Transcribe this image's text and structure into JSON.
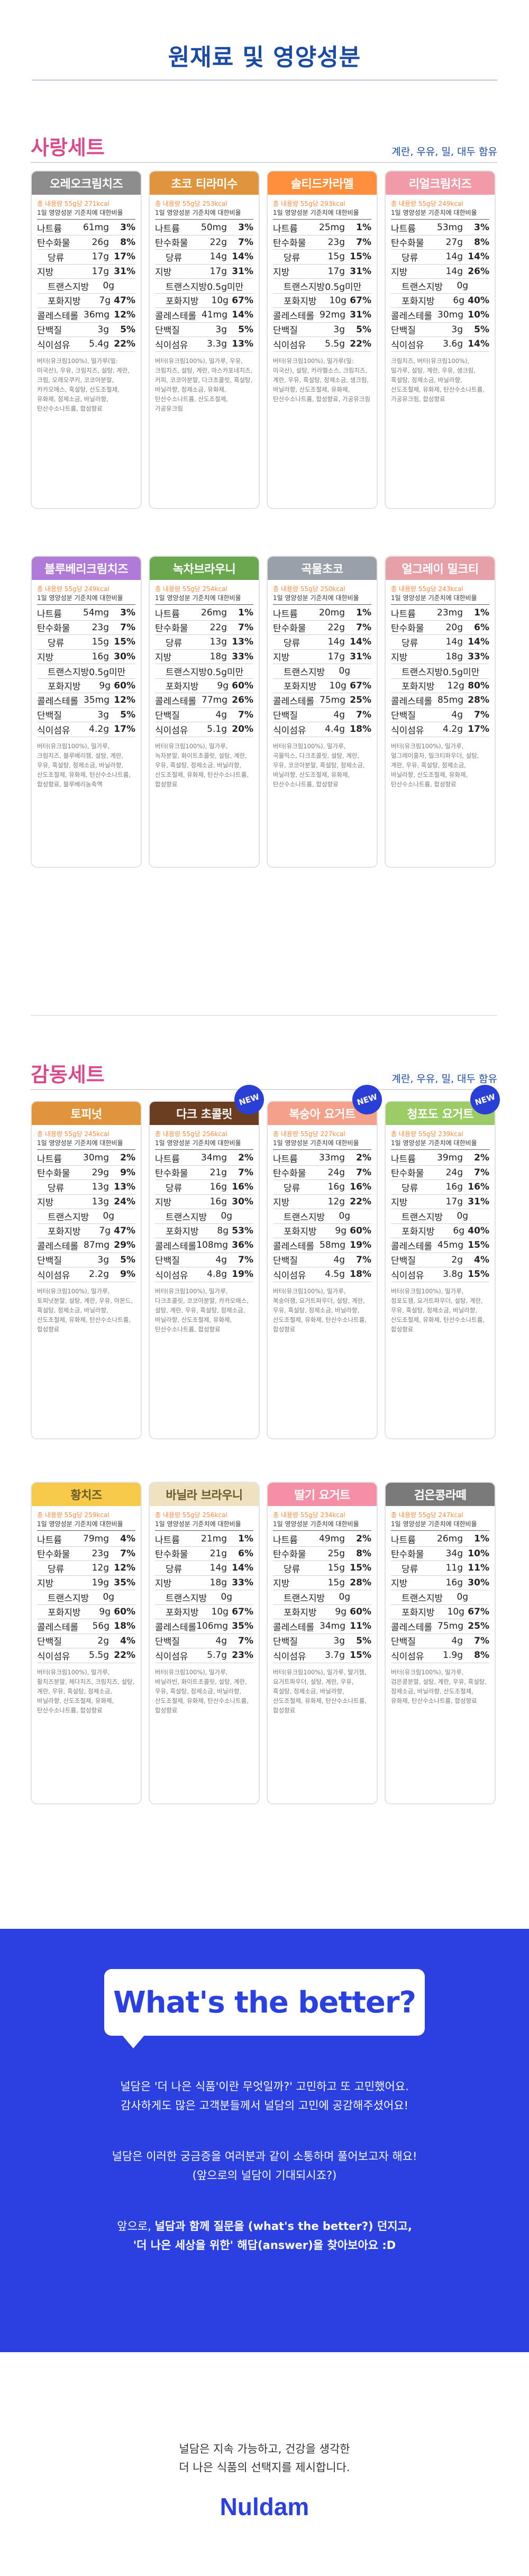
{
  "page_title": "원재료 및 영양성분",
  "sets": [
    {
      "title": "사랑세트",
      "note": "계란, 우유, 밀, 대두 함유",
      "cards": [
        {
          "name": "오레오크림치즈",
          "color": "#8c8c8c",
          "new": false,
          "cal": "총 내용량 55g당 271kcal",
          "basis": "1일 영양성분 기준치에 대한비율",
          "rows": [
            [
              "나트륨",
              "61mg",
              "3%"
            ],
            [
              "탄수화물",
              "26g",
              "8%"
            ],
            [
              "당류",
              "17g",
              "17%"
            ],
            [
              "지방",
              "17g",
              "31%"
            ],
            [
              "트랜스지방",
              "0g",
              ""
            ],
            [
              "포화지방",
              "7g",
              "47%"
            ],
            [
              "콜레스테롤",
              "36mg",
              "12%"
            ],
            [
              "단백질",
              "3g",
              "5%"
            ],
            [
              "식이섬유",
              "5.4g",
              "22%"
            ]
          ],
          "ingr": "버터(유크림100%), 밀가루(밀: 미국산), 우유, 크림치즈, 설탕, 계란, 크림, 오레오쿠키, 코코아분말, 카카오매스, 흑설탕, 산도조절제, 유화제, 정제소금, 바닐라향, 탄산수소나트륨, 합성향료"
        },
        {
          "name": "초코 티라미수",
          "color": "#e0943c",
          "new": false,
          "cal": "총 내용량 55g당 253kcal",
          "basis": "1일 영양성분 기준치에 대한비율",
          "rows": [
            [
              "나트륨",
              "50mg",
              "3%"
            ],
            [
              "탄수화물",
              "22g",
              "7%"
            ],
            [
              "당류",
              "14g",
              "14%"
            ],
            [
              "지방",
              "17g",
              "31%"
            ],
            [
              "트랜스지방",
              "0.5g미만",
              ""
            ],
            [
              "포화지방",
              "10g",
              "67%"
            ],
            [
              "콜레스테롤",
              "41mg",
              "14%"
            ],
            [
              "단백질",
              "3g",
              "5%"
            ],
            [
              "식이섬유",
              "3.3g",
              "13%"
            ]
          ],
          "ingr": "버터(유크림100%), 밀가루, 우유, 크림치즈, 설탕, 계란, 마스카포네치즈, 커피, 코코아분말, 다크초콜릿, 흑설탕, 바닐라향, 정제소금, 유화제, 탄산수소나트륨, 산도조절제, 가공유크림"
        },
        {
          "name": "솔티드카라멜",
          "color": "#ff8f3a",
          "new": false,
          "cal": "총 내용량 55g당 293kcal",
          "basis": "1일 영양성분 기준치에 대한비율",
          "rows": [
            [
              "나트륨",
              "25mg",
              "1%"
            ],
            [
              "탄수화물",
              "23g",
              "7%"
            ],
            [
              "당류",
              "15g",
              "15%"
            ],
            [
              "지방",
              "17g",
              "31%"
            ],
            [
              "트랜스지방",
              "0.5g미만",
              ""
            ],
            [
              "포화지방",
              "10g",
              "67%"
            ],
            [
              "콜레스테롤",
              "92mg",
              "31%"
            ],
            [
              "단백질",
              "3g",
              "5%"
            ],
            [
              "식이섬유",
              "5.5g",
              "22%"
            ]
          ],
          "ingr": "버터(유크림100%), 밀가루(밀: 미국산), 설탕, 카라멜소스, 크림치즈, 계란, 우유, 흑설탕, 정제소금, 생크림, 바닐라향, 산도조절제, 유화제, 탄산수소나트륨, 합성향료, 가공유크림"
        },
        {
          "name": "리얼크림치즈",
          "color": "#f19aa8",
          "new": false,
          "cal": "총 내용량 55g당 249kcal",
          "basis": "1일 영양성분 기준치에 대한비율",
          "rows": [
            [
              "나트륨",
              "53mg",
              "3%"
            ],
            [
              "탄수화물",
              "27g",
              "8%"
            ],
            [
              "당류",
              "14g",
              "14%"
            ],
            [
              "지방",
              "14g",
              "26%"
            ],
            [
              "트랜스지방",
              "0g",
              ""
            ],
            [
              "포화지방",
              "6g",
              "40%"
            ],
            [
              "콜레스테롤",
              "30mg",
              "10%"
            ],
            [
              "단백질",
              "3g",
              "5%"
            ],
            [
              "식이섬유",
              "3.6g",
              "14%"
            ]
          ],
          "ingr": "크림치즈, 버터(유크림100%), 밀가루, 설탕, 계란, 우유, 생크림, 흑설탕, 정제소금, 바닐라향, 산도조절제, 유화제, 탄산수소나트륨, 가공유크림, 합성향료"
        },
        {
          "name": "블루베리크림치즈",
          "color": "#b07ad8",
          "new": false,
          "cal": "총 내용량 55g당 249kcal",
          "basis": "1일 영양성분 기준치에 대한비율",
          "rows": [
            [
              "나트륨",
              "54mg",
              "3%"
            ],
            [
              "탄수화물",
              "23g",
              "7%"
            ],
            [
              "당류",
              "15g",
              "15%"
            ],
            [
              "지방",
              "16g",
              "30%"
            ],
            [
              "트랜스지방",
              "0.5g미만",
              ""
            ],
            [
              "포화지방",
              "9g",
              "60%"
            ],
            [
              "콜레스테롤",
              "35mg",
              "12%"
            ],
            [
              "단백질",
              "3g",
              "5%"
            ],
            [
              "식이섬유",
              "4.2g",
              "17%"
            ]
          ],
          "ingr": "버터(유크림100%), 밀가루, 크림치즈, 블루베리잼, 설탕, 계란, 우유, 흑설탕, 정제소금, 바닐라향, 산도조절제, 유화제, 탄산수소나트륨, 합성향료, 블루베리농축액"
        },
        {
          "name": "녹차브라우니",
          "color": "#6aa84f",
          "new": false,
          "cal": "총 내용량 55g당 254kcal",
          "basis": "1일 영양성분 기준치에 대한비율",
          "rows": [
            [
              "나트륨",
              "26mg",
              "1%"
            ],
            [
              "탄수화물",
              "22g",
              "7%"
            ],
            [
              "당류",
              "13g",
              "13%"
            ],
            [
              "지방",
              "18g",
              "33%"
            ],
            [
              "트랜스지방",
              "0.5g미만",
              ""
            ],
            [
              "포화지방",
              "9g",
              "60%"
            ],
            [
              "콜레스테롤",
              "77mg",
              "26%"
            ],
            [
              "단백질",
              "4g",
              "7%"
            ],
            [
              "식이섬유",
              "5.1g",
              "20%"
            ]
          ],
          "ingr": "버터(유크림100%), 밀가루, 녹차분말, 화이트초콜릿, 설탕, 계란, 우유, 흑설탕, 정제소금, 바닐라향, 산도조절제, 유화제, 탄산수소나트륨, 합성향료"
        },
        {
          "name": "곡물초코",
          "color": "#9aa0a8",
          "new": false,
          "cal": "총 내용량 55g당 250kcal",
          "basis": "1일 영양성분 기준치에 대한비율",
          "rows": [
            [
              "나트륨",
              "20mg",
              "1%"
            ],
            [
              "탄수화물",
              "22g",
              "7%"
            ],
            [
              "당류",
              "14g",
              "14%"
            ],
            [
              "지방",
              "17g",
              "31%"
            ],
            [
              "트랜스지방",
              "0g",
              ""
            ],
            [
              "포화지방",
              "10g",
              "67%"
            ],
            [
              "콜레스테롤",
              "75mg",
              "25%"
            ],
            [
              "단백질",
              "4g",
              "7%"
            ],
            [
              "식이섬유",
              "4.4g",
              "18%"
            ]
          ],
          "ingr": "버터(유크림100%), 밀가루, 곡물믹스, 다크초콜릿, 설탕, 계란, 우유, 코코아분말, 흑설탕, 정제소금, 바닐라향, 산도조절제, 유화제, 탄산수소나트륨, 합성향료"
        },
        {
          "name": "얼그레이 밀크티",
          "color": "#e8a0a8",
          "new": false,
          "cal": "총 내용량 55g당 243kcal",
          "basis": "1일 영양성분 기준치에 대한비율",
          "rows": [
            [
              "나트륨",
              "23mg",
              "1%"
            ],
            [
              "탄수화물",
              "20g",
              "6%"
            ],
            [
              "당류",
              "14g",
              "14%"
            ],
            [
              "지방",
              "18g",
              "33%"
            ],
            [
              "트랜스지방",
              "0.5g미만",
              ""
            ],
            [
              "포화지방",
              "12g",
              "80%"
            ],
            [
              "콜레스테롤",
              "85mg",
              "28%"
            ],
            [
              "단백질",
              "4g",
              "7%"
            ],
            [
              "식이섬유",
              "4.2g",
              "17%"
            ]
          ],
          "ingr": "버터(유크림100%), 밀가루, 얼그레이홍차, 밀크티파우더, 설탕, 계란, 우유, 흑설탕, 정제소금, 바닐라향, 산도조절제, 유화제, 탄산수소나트륨, 합성향료"
        }
      ]
    },
    {
      "title": "감동세트",
      "note": "계란, 우유, 밀, 대두 함유",
      "cards": [
        {
          "name": "토피넛",
          "color": "#e0943c",
          "new": false,
          "cal": "총 내용량 55g당 245kcal",
          "basis": "1일 영양성분 기준치에 대한비율",
          "rows": [
            [
              "나트륨",
              "30mg",
              "2%"
            ],
            [
              "탄수화물",
              "29g",
              "9%"
            ],
            [
              "당류",
              "13g",
              "13%"
            ],
            [
              "지방",
              "13g",
              "24%"
            ],
            [
              "트랜스지방",
              "0g",
              ""
            ],
            [
              "포화지방",
              "7g",
              "47%"
            ],
            [
              "콜레스테롤",
              "87mg",
              "29%"
            ],
            [
              "단백질",
              "3g",
              "5%"
            ],
            [
              "식이섬유",
              "2.2g",
              "9%"
            ]
          ],
          "ingr": "버터(유크림100%), 밀가루, 토피넛분말, 설탕, 계란, 우유, 아몬드, 흑설탕, 정제소금, 바닐라향, 산도조절제, 유화제, 탄산수소나트륨, 합성향료"
        },
        {
          "name": "다크 초콜릿",
          "color": "#6b3e22",
          "new": true,
          "cal": "총 내용량 55g당 256kcal",
          "basis": "1일 영양성분 기준치에 대한비율",
          "rows": [
            [
              "나트륨",
              "34mg",
              "2%"
            ],
            [
              "탄수화물",
              "21g",
              "7%"
            ],
            [
              "당류",
              "16g",
              "16%"
            ],
            [
              "지방",
              "16g",
              "30%"
            ],
            [
              "트랜스지방",
              "0g",
              ""
            ],
            [
              "포화지방",
              "8g",
              "53%"
            ],
            [
              "콜레스테롤",
              "108mg",
              "36%"
            ],
            [
              "단백질",
              "4g",
              "7%"
            ],
            [
              "식이섬유",
              "4.8g",
              "19%"
            ]
          ],
          "ingr": "버터(유크림100%), 밀가루, 다크초콜릿, 코코아분말, 카카오매스, 설탕, 계란, 우유, 흑설탕, 정제소금, 바닐라향, 산도조절제, 유화제, 탄산수소나트륨, 합성향료"
        },
        {
          "name": "복숭아 요거트",
          "color": "#f4a08a",
          "new": true,
          "cal": "총 내용량 55g당 227kcal",
          "basis": "1일 영양성분 기준치에 대한비율",
          "rows": [
            [
              "나트륨",
              "33mg",
              "2%"
            ],
            [
              "탄수화물",
              "24g",
              "7%"
            ],
            [
              "당류",
              "16g",
              "16%"
            ],
            [
              "지방",
              "12g",
              "22%"
            ],
            [
              "트랜스지방",
              "0g",
              ""
            ],
            [
              "포화지방",
              "9g",
              "60%"
            ],
            [
              "콜레스테롤",
              "58mg",
              "19%"
            ],
            [
              "단백질",
              "4g",
              "7%"
            ],
            [
              "식이섬유",
              "4.5g",
              "18%"
            ]
          ],
          "ingr": "버터(유크림100%), 밀가루, 복숭아잼, 요거트파우더, 설탕, 계란, 우유, 흑설탕, 정제소금, 바닐라향, 산도조절제, 유화제, 탄산수소나트륨, 합성향료"
        },
        {
          "name": "청포도 요거트",
          "color": "#9ccc65",
          "new": true,
          "cal": "총 내용량 55g당 239kcal",
          "basis": "1일 영양성분 기준치에 대한비율",
          "rows": [
            [
              "나트륨",
              "39mg",
              "2%"
            ],
            [
              "탄수화물",
              "24g",
              "7%"
            ],
            [
              "당류",
              "16g",
              "16%"
            ],
            [
              "지방",
              "17g",
              "31%"
            ],
            [
              "트랜스지방",
              "0g",
              ""
            ],
            [
              "포화지방",
              "6g",
              "40%"
            ],
            [
              "콜레스테롤",
              "45mg",
              "15%"
            ],
            [
              "단백질",
              "2g",
              "4%"
            ],
            [
              "식이섬유",
              "3.8g",
              "15%"
            ]
          ],
          "ingr": "버터(유크림100%), 밀가루, 청포도잼, 요거트파우더, 설탕, 계란, 우유, 흑설탕, 정제소금, 바닐라향, 산도조절제, 유화제, 탄산수소나트륨, 합성향료"
        },
        {
          "name": "황치즈",
          "color": "#f7c948",
          "new": false,
          "cal": "총 내용량 55g당 259kcal",
          "basis": "1일 영양성분 기준치에 대한비율",
          "rows": [
            [
              "나트륨",
              "79mg",
              "4%"
            ],
            [
              "탄수화물",
              "23g",
              "7%"
            ],
            [
              "당류",
              "12g",
              "12%"
            ],
            [
              "지방",
              "19g",
              "35%"
            ],
            [
              "트랜스지방",
              "0g",
              ""
            ],
            [
              "포화지방",
              "9g",
              "60%"
            ],
            [
              "콜레스테롤",
              "56g",
              "18%"
            ],
            [
              "단백질",
              "2g",
              "4%"
            ],
            [
              "식이섬유",
              "5.5g",
              "22%"
            ]
          ],
          "ingr": "버터(유크림100%), 밀가루, 황치즈분말, 체다치즈, 크림치즈, 설탕, 계란, 우유, 흑설탕, 정제소금, 바닐라향, 산도조절제, 유화제, 탄산수소나트륨, 합성향료"
        },
        {
          "name": "바닐라 브라우니",
          "color": "#f0e2c0",
          "new": false,
          "cal": "총 내용량 55g당 256kcal",
          "basis": "1일 영양성분 기준치에 대한비율",
          "rows": [
            [
              "나트륨",
              "21mg",
              "1%"
            ],
            [
              "탄수화물",
              "21g",
              "6%"
            ],
            [
              "당류",
              "14g",
              "14%"
            ],
            [
              "지방",
              "18g",
              "33%"
            ],
            [
              "트랜스지방",
              "0g",
              ""
            ],
            [
              "포화지방",
              "10g",
              "67%"
            ],
            [
              "콜레스테롤",
              "106mg",
              "35%"
            ],
            [
              "단백질",
              "4g",
              "7%"
            ],
            [
              "식이섬유",
              "5.7g",
              "23%"
            ]
          ],
          "ingr": "버터(유크림100%), 밀가루, 바닐라빈, 화이트초콜릿, 설탕, 계란, 우유, 흑설탕, 정제소금, 바닐라향, 산도조절제, 유화제, 탄산수소나트륨, 합성향료"
        },
        {
          "name": "딸기 요거트",
          "color": "#f58fa6",
          "new": false,
          "cal": "총 내용량 55g당 234kcal",
          "basis": "1일 영양성분 기준치에 대한비율",
          "rows": [
            [
              "나트륨",
              "49mg",
              "2%"
            ],
            [
              "탄수화물",
              "25g",
              "8%"
            ],
            [
              "당류",
              "15g",
              "15%"
            ],
            [
              "지방",
              "15g",
              "28%"
            ],
            [
              "트랜스지방",
              "0g",
              ""
            ],
            [
              "포화지방",
              "9g",
              "60%"
            ],
            [
              "콜레스테롤",
              "34mg",
              "11%"
            ],
            [
              "단백질",
              "3g",
              "5%"
            ],
            [
              "식이섬유",
              "3.7g",
              "15%"
            ]
          ],
          "ingr": "버터(유크림100%), 밀가루, 딸기잼, 요거트파우더, 설탕, 계란, 우유, 흑설탕, 정제소금, 바닐라향, 산도조절제, 유화제, 탄산수소나트륨, 합성향료"
        },
        {
          "name": "검은콩라떼",
          "color": "#7a7a7a",
          "new": false,
          "cal": "총 내용량 55g당 247kcal",
          "basis": "1일 영양성분 기준치에 대한비율",
          "rows": [
            [
              "나트륨",
              "26mg",
              "1%"
            ],
            [
              "탄수화물",
              "34g",
              "10%"
            ],
            [
              "당류",
              "11g",
              "11%"
            ],
            [
              "지방",
              "16g",
              "30%"
            ],
            [
              "트랜스지방",
              "0g",
              ""
            ],
            [
              "포화지방",
              "10g",
              "67%"
            ],
            [
              "콜레스테롤",
              "75mg",
              "25%"
            ],
            [
              "단백질",
              "4g",
              "7%"
            ],
            [
              "식이섬유",
              "1.9g",
              "8%"
            ]
          ],
          "ingr": "버터(유크림100%), 밀가루, 검은콩분말, 설탕, 계란, 우유, 흑설탕, 정제소금, 바닐라향, 산도조절제, 유화제, 탄산수소나트륨, 합성향료"
        }
      ]
    }
  ],
  "new_badge": "NEW",
  "band": {
    "bubble": "What's the better?",
    "para1": [
      "널담은 '더 나은 식품'이란 무엇일까?' 고민하고 또 고민했어요.",
      "감사하게도 많은 고객분들께서 널담의 고민에 공감해주셨어요!"
    ],
    "para2": [
      "널담은 이러한 궁금증을 여러분과 같이 소통하며 풀어보고자 해요!",
      "(앞으로의 널담이 기대되시죠?)"
    ],
    "para3a_pre": "앞으로, ",
    "para3a_bold": "널담과 함께 질문을 (what's the better?) 던지고,",
    "para3b": "'더 나은 세상을 위한' 해답(answer)을 찾아보아요 :D"
  },
  "footer": {
    "line1": "널담은 지속 가능하고, 건강을 생각한",
    "line2": "더 나은 식품의 선택지를 제시합니다.",
    "brand": "Nuldam"
  }
}
